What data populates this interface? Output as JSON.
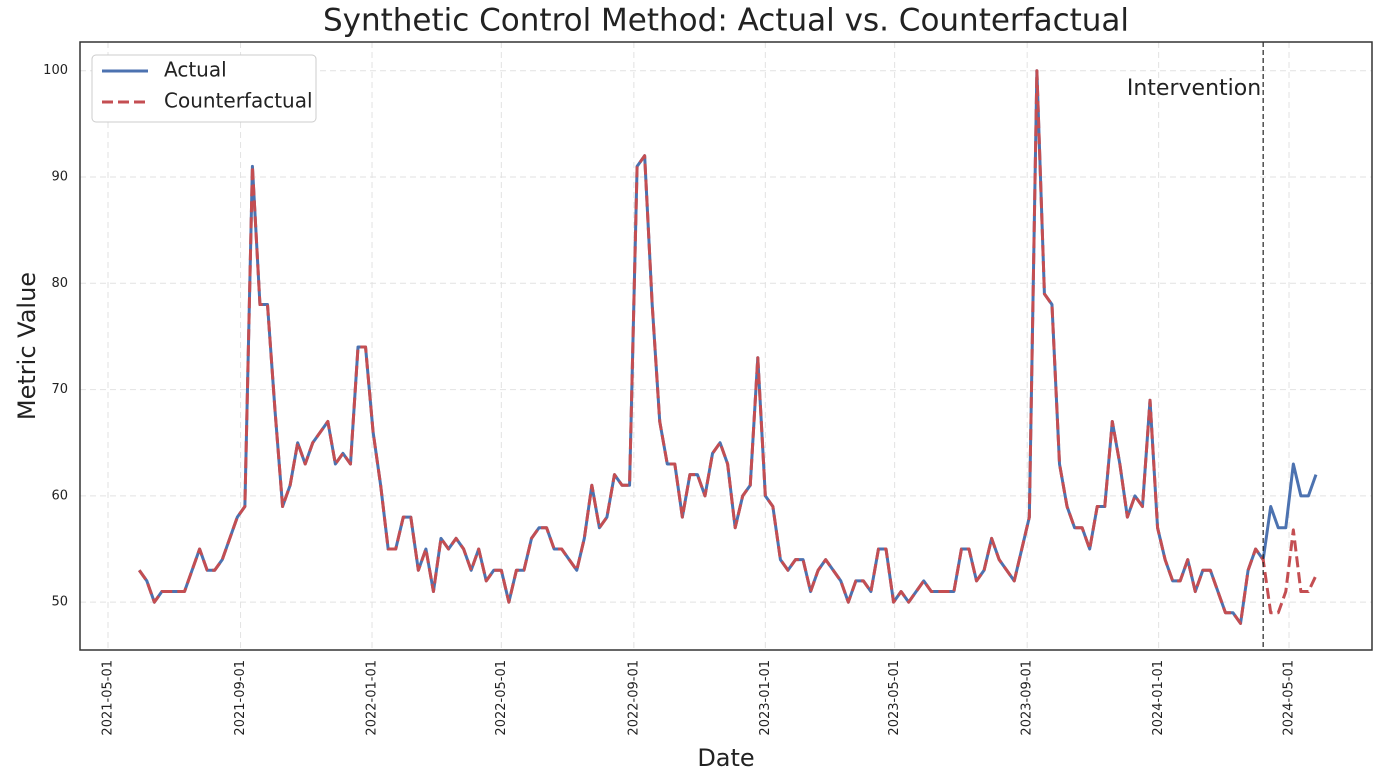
{
  "chart_data": {
    "type": "line",
    "title": "Synthetic Control Method: Actual vs. Counterfactual",
    "xlabel": "Date",
    "ylabel": "Metric Value",
    "x": [
      "2021-05-30",
      "2021-06-06",
      "2021-06-13",
      "2021-06-20",
      "2021-06-27",
      "2021-07-04",
      "2021-07-11",
      "2021-07-18",
      "2021-07-25",
      "2021-08-01",
      "2021-08-08",
      "2021-08-15",
      "2021-08-22",
      "2021-08-29",
      "2021-09-05",
      "2021-09-12",
      "2021-09-19",
      "2021-09-26",
      "2021-10-03",
      "2021-10-10",
      "2021-10-17",
      "2021-10-24",
      "2021-10-31",
      "2021-11-07",
      "2021-11-14",
      "2021-11-21",
      "2021-11-28",
      "2021-12-05",
      "2021-12-12",
      "2021-12-19",
      "2021-12-26",
      "2022-01-02",
      "2022-01-09",
      "2022-01-16",
      "2022-01-23",
      "2022-01-30",
      "2022-02-06",
      "2022-02-13",
      "2022-02-20",
      "2022-02-27",
      "2022-03-06",
      "2022-03-13",
      "2022-03-20",
      "2022-03-27",
      "2022-04-03",
      "2022-04-10",
      "2022-04-17",
      "2022-04-24",
      "2022-05-01",
      "2022-05-08",
      "2022-05-15",
      "2022-05-22",
      "2022-05-29",
      "2022-06-05",
      "2022-06-12",
      "2022-06-19",
      "2022-06-26",
      "2022-07-03",
      "2022-07-10",
      "2022-07-17",
      "2022-07-24",
      "2022-07-31",
      "2022-08-07",
      "2022-08-14",
      "2022-08-21",
      "2022-08-28",
      "2022-09-04",
      "2022-09-11",
      "2022-09-18",
      "2022-09-25",
      "2022-10-02",
      "2022-10-09",
      "2022-10-16",
      "2022-10-23",
      "2022-10-30",
      "2022-11-06",
      "2022-11-13",
      "2022-11-20",
      "2022-11-27",
      "2022-12-04",
      "2022-12-11",
      "2022-12-18",
      "2022-12-25",
      "2023-01-01",
      "2023-01-08",
      "2023-01-15",
      "2023-01-22",
      "2023-01-29",
      "2023-02-05",
      "2023-02-12",
      "2023-02-19",
      "2023-02-26",
      "2023-03-05",
      "2023-03-12",
      "2023-03-19",
      "2023-03-26",
      "2023-04-02",
      "2023-04-09",
      "2023-04-16",
      "2023-04-23",
      "2023-04-30",
      "2023-05-07",
      "2023-05-14",
      "2023-05-21",
      "2023-05-28",
      "2023-06-04",
      "2023-06-11",
      "2023-06-18",
      "2023-06-25",
      "2023-07-02",
      "2023-07-09",
      "2023-07-16",
      "2023-07-23",
      "2023-07-30",
      "2023-08-06",
      "2023-08-13",
      "2023-08-20",
      "2023-08-27",
      "2023-09-03",
      "2023-09-10",
      "2023-09-17",
      "2023-09-24",
      "2023-10-01",
      "2023-10-08",
      "2023-10-15",
      "2023-10-22",
      "2023-10-29",
      "2023-11-05",
      "2023-11-12",
      "2023-11-19",
      "2023-11-26",
      "2023-12-03",
      "2023-12-10",
      "2023-12-17",
      "2023-12-24",
      "2023-12-31",
      "2024-01-07",
      "2024-01-14",
      "2024-01-21",
      "2024-01-28",
      "2024-02-04",
      "2024-02-11",
      "2024-02-18",
      "2024-02-25",
      "2024-03-03",
      "2024-03-10",
      "2024-03-17",
      "2024-03-24",
      "2024-03-31",
      "2024-04-07",
      "2024-04-14",
      "2024-04-21",
      "2024-04-28",
      "2024-05-05",
      "2024-05-12",
      "2024-05-19",
      "2024-05-26"
    ],
    "series": [
      {
        "name": "Actual",
        "color": "#4c72b0",
        "dash": "solid",
        "values": [
          53,
          52,
          50,
          51,
          51,
          51,
          51,
          53,
          55,
          53,
          53,
          54,
          56,
          58,
          59,
          91,
          78,
          78,
          68,
          59,
          61,
          65,
          63,
          65,
          66,
          67,
          63,
          64,
          63,
          74,
          74,
          66,
          61,
          55,
          55,
          58,
          58,
          53,
          55,
          51,
          56,
          55,
          56,
          55,
          53,
          55,
          52,
          53,
          53,
          50,
          53,
          53,
          56,
          57,
          57,
          55,
          55,
          54,
          53,
          56,
          61,
          57,
          58,
          62,
          61,
          61,
          91,
          92,
          78,
          67,
          63,
          63,
          58,
          62,
          62,
          60,
          64,
          65,
          63,
          57,
          60,
          61,
          73,
          60,
          59,
          54,
          53,
          54,
          54,
          51,
          53,
          54,
          53,
          52,
          50,
          52,
          52,
          51,
          55,
          55,
          50,
          51,
          50,
          51,
          52,
          51,
          51,
          51,
          51,
          55,
          55,
          52,
          53,
          56,
          54,
          53,
          52,
          55,
          58,
          100,
          79,
          78,
          63,
          59,
          57,
          57,
          55,
          59,
          59,
          67,
          63,
          58,
          60,
          59,
          69,
          57,
          54,
          52,
          52,
          54,
          51,
          53,
          53,
          51,
          49,
          49,
          48,
          53,
          55,
          54,
          59,
          57,
          57,
          63,
          60,
          60,
          62
        ]
      },
      {
        "name": "Counterfactual",
        "color": "#c44e52",
        "dash": "dashed",
        "values": [
          53,
          52,
          50,
          51,
          51,
          51,
          51,
          53,
          55,
          53,
          53,
          54,
          56,
          58,
          59,
          91,
          78,
          78,
          68,
          59,
          61,
          65,
          63,
          65,
          66,
          67,
          63,
          64,
          63,
          74,
          74,
          66,
          61,
          55,
          55,
          58,
          58,
          53,
          55,
          51,
          56,
          55,
          56,
          55,
          53,
          55,
          52,
          53,
          53,
          50,
          53,
          53,
          56,
          57,
          57,
          55,
          55,
          54,
          53,
          56,
          61,
          57,
          58,
          62,
          61,
          61,
          91,
          92,
          78,
          67,
          63,
          63,
          58,
          62,
          62,
          60,
          64,
          65,
          63,
          57,
          60,
          61,
          73,
          60,
          59,
          54,
          53,
          54,
          54,
          51,
          53,
          54,
          53,
          52,
          50,
          52,
          52,
          51,
          55,
          55,
          50,
          51,
          50,
          51,
          52,
          51,
          51,
          51,
          51,
          55,
          55,
          52,
          53,
          56,
          54,
          53,
          52,
          55,
          58,
          100,
          79,
          78,
          63,
          59,
          57,
          57,
          55,
          59,
          59,
          67,
          63,
          58,
          60,
          59,
          69,
          57,
          54,
          52,
          52,
          54,
          51,
          53,
          53,
          51,
          49,
          49,
          48,
          53,
          55,
          54,
          49,
          49,
          51,
          56.8,
          51,
          51,
          52.5
        ]
      }
    ],
    "xlim": [
      "2021-04-05",
      "2024-07-17"
    ],
    "xticks": [
      "2021-05-01",
      "2021-09-01",
      "2022-01-01",
      "2022-05-01",
      "2022-09-01",
      "2023-01-01",
      "2023-05-01",
      "2023-09-01",
      "2024-01-01",
      "2024-05-01"
    ],
    "ylim": [
      45.5,
      102.7
    ],
    "yticks": [
      50,
      60,
      70,
      80,
      90,
      100
    ],
    "grid": true,
    "legend": "upper left",
    "intervention": {
      "x": "2024-04-07",
      "label": "Intervention"
    }
  }
}
